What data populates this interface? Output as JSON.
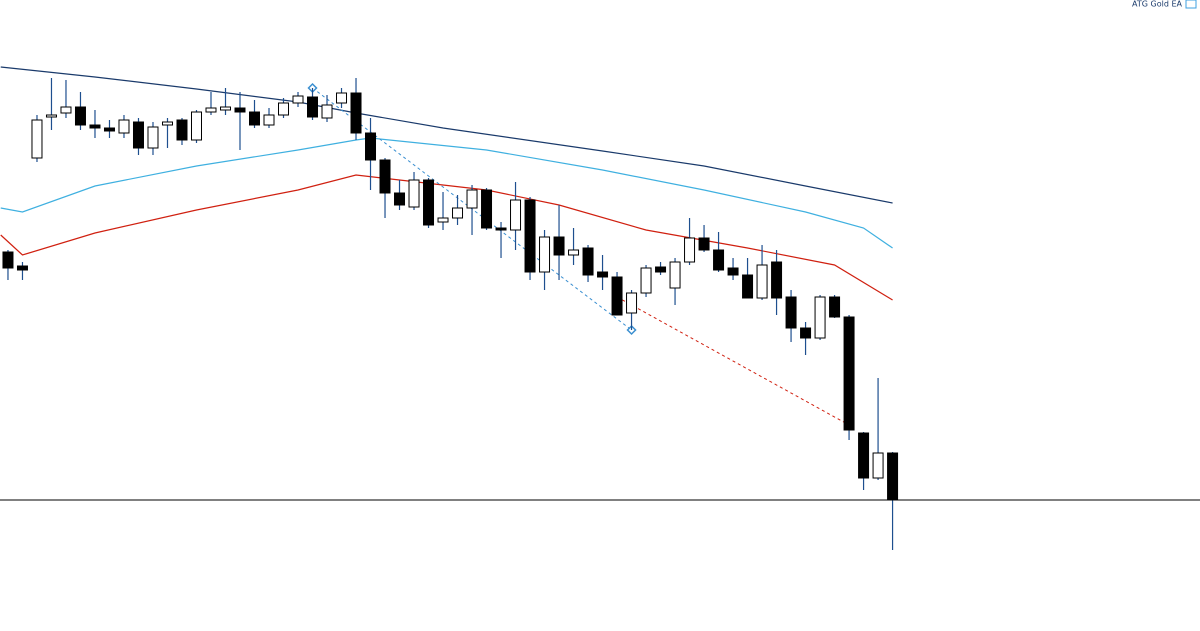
{
  "chart_data": {
    "type": "candlestick",
    "title": "ATG Gold EA",
    "xlim": [
      -0.55,
      82.2
    ],
    "ylim": [
      0,
      631
    ],
    "up_color": "#ffffff",
    "down_color": "#000000",
    "wick_color": "#1e4f8f",
    "open": [
      379,
      365,
      473,
      514,
      518,
      524,
      506,
      503,
      498,
      509,
      483,
      506,
      511,
      491,
      519,
      521,
      523,
      519,
      506,
      516,
      528,
      534,
      513,
      528,
      538,
      498,
      471,
      438,
      424,
      451,
      409,
      413,
      423,
      441,
      403,
      401,
      431,
      359,
      394,
      376,
      383,
      359,
      354,
      318,
      338,
      364,
      343,
      369,
      393,
      381,
      363,
      356,
      333,
      369,
      334,
      303,
      293,
      334,
      314,
      198,
      153,
      178
    ],
    "high": [
      381,
      369,
      516,
      553,
      551,
      539,
      521,
      511,
      516,
      513,
      509,
      513,
      513,
      521,
      539,
      543,
      539,
      531,
      523,
      533,
      539,
      543,
      536,
      543,
      553,
      513,
      473,
      451,
      459,
      453,
      439,
      436,
      446,
      443,
      409,
      449,
      434,
      401,
      426,
      403,
      386,
      376,
      359,
      341,
      366,
      369,
      373,
      413,
      406,
      399,
      373,
      373,
      386,
      381,
      341,
      309,
      336,
      336,
      316,
      199,
      253,
      179
    ],
    "low": [
      351,
      351,
      469,
      501,
      513,
      501,
      493,
      493,
      493,
      476,
      476,
      483,
      486,
      488,
      516,
      516,
      481,
      503,
      503,
      513,
      524,
      511,
      509,
      523,
      491,
      441,
      413,
      421,
      421,
      403,
      401,
      406,
      396,
      401,
      373,
      381,
      351,
      341,
      351,
      366,
      349,
      341,
      316,
      301,
      334,
      356,
      326,
      366,
      379,
      359,
      351,
      333,
      331,
      316,
      289,
      276,
      291,
      313,
      191,
      141,
      151,
      81
    ],
    "close": [
      363,
      361,
      511,
      516,
      524,
      506,
      503,
      500,
      511,
      483,
      504,
      509,
      491,
      519,
      523,
      524,
      519,
      506,
      516,
      528,
      535,
      514,
      526,
      538,
      498,
      471,
      438,
      426,
      451,
      406,
      413,
      423,
      441,
      403,
      401,
      431,
      359,
      394,
      376,
      381,
      356,
      354,
      316,
      338,
      363,
      359,
      369,
      393,
      381,
      361,
      356,
      333,
      366,
      333,
      303,
      293,
      334,
      314,
      201,
      153,
      178,
      131
    ],
    "series": [
      {
        "color": "#1a3a6b",
        "x": [
          -0.5,
          6,
          13,
          20,
          24,
          30,
          41,
          48,
          55,
          61
        ],
        "values": [
          564,
          554,
          542,
          529,
          518,
          503,
          480,
          465,
          445,
          428
        ]
      },
      {
        "color": "#3fb0e0",
        "x": [
          -0.5,
          1,
          6,
          13,
          20,
          24,
          25,
          33,
          41,
          48,
          55,
          59,
          61
        ],
        "values": [
          423,
          419,
          445,
          465,
          481,
          491,
          493,
          481,
          461,
          441,
          419,
          403,
          383
        ]
      },
      {
        "color": "#d02010",
        "x": [
          -0.5,
          1,
          6,
          13,
          20,
          24,
          27,
          33,
          38,
          44,
          51,
          57,
          61
        ],
        "values": [
          396,
          376,
          398,
          421,
          441,
          456,
          451,
          441,
          426,
          401,
          383,
          366,
          331
        ]
      }
    ],
    "trade_lines": [
      {
        "color": "#3a8fd0",
        "x": [
          21,
          43
        ],
        "values": [
          543,
          301
        ]
      },
      {
        "color": "#d02010",
        "x": [
          42,
          58
        ],
        "values": [
          334,
          206
        ]
      }
    ]
  }
}
